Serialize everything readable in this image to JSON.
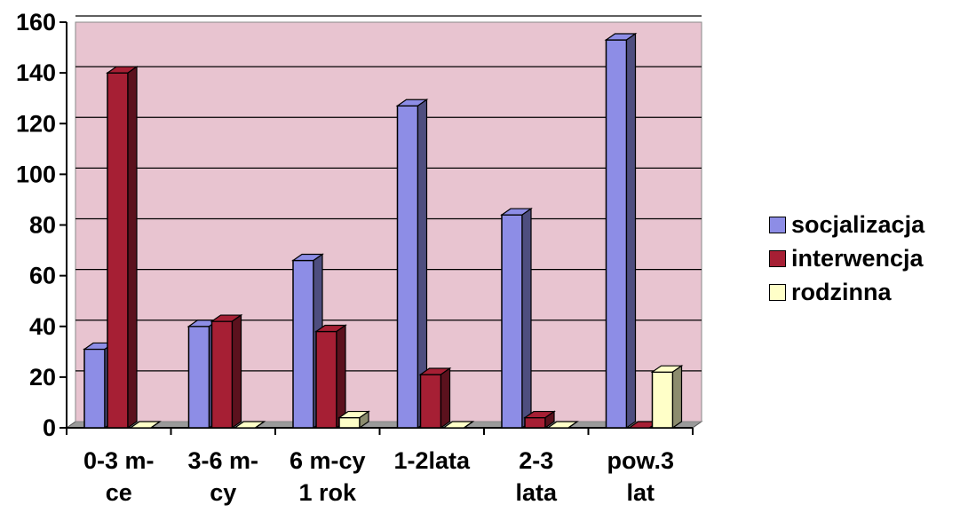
{
  "chart_data": {
    "type": "bar",
    "categories": [
      [
        "0-3 m-",
        "ce"
      ],
      [
        "3-6 m-",
        "cy"
      ],
      [
        "6 m-cy",
        "1 rok"
      ],
      [
        "1-2lata",
        ""
      ],
      [
        "2-3",
        "lata"
      ],
      [
        "pow.3",
        "lat"
      ]
    ],
    "series": [
      {
        "name": "socjalizacja",
        "values": [
          31,
          40,
          66,
          127,
          84,
          153
        ],
        "color": "#8d8de6"
      },
      {
        "name": "interwencja",
        "values": [
          140,
          42,
          38,
          21,
          4,
          0
        ],
        "color": "#a61f34"
      },
      {
        "name": "rodzinna",
        "values": [
          0,
          0,
          4,
          0,
          0,
          22
        ],
        "color": "#ffffc8"
      }
    ],
    "y_ticks": [
      "0",
      "20",
      "40",
      "60",
      "80",
      "100",
      "120",
      "140",
      "160"
    ],
    "ylim": [
      0,
      160
    ],
    "grid": true,
    "legend": "right",
    "plot_background": "#e8c4d0",
    "title": "",
    "xlabel": "",
    "ylabel": ""
  }
}
